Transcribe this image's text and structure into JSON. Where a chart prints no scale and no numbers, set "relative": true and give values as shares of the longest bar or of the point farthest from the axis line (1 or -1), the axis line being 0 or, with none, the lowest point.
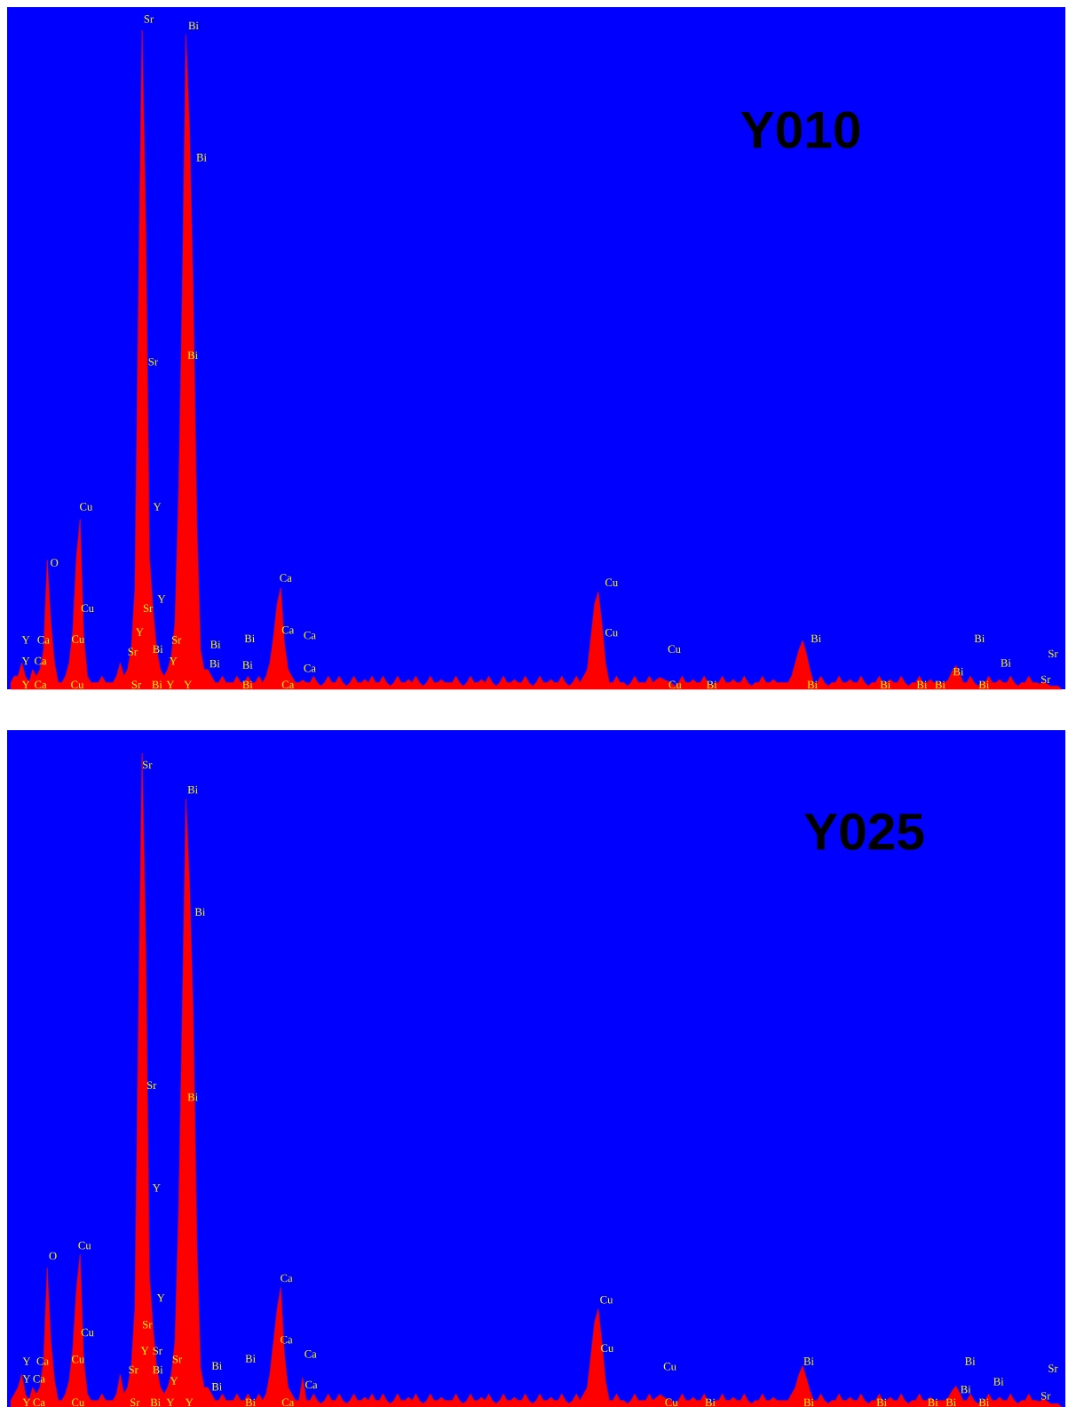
{
  "chart_data": [
    {
      "type": "area",
      "relative": true,
      "tick_labels": false,
      "title": "Y010",
      "categories": [
        null,
        null,
        null,
        null,
        null,
        null,
        null,
        null,
        null,
        null,
        null,
        null,
        null,
        null,
        null,
        null,
        null,
        null,
        null,
        null,
        null,
        null,
        null,
        null,
        null,
        null,
        null,
        null,
        null,
        null,
        null,
        null,
        null,
        null,
        null,
        null,
        null,
        null,
        null,
        null,
        null,
        null,
        null,
        null,
        null,
        null,
        null,
        null,
        null,
        null,
        null,
        null,
        null,
        null,
        null,
        null,
        null,
        null,
        null,
        null,
        null,
        null,
        null,
        null,
        null,
        null,
        null,
        null,
        null,
        null,
        null,
        null,
        null,
        null,
        null,
        null,
        null,
        null,
        null,
        null,
        null,
        null,
        null,
        null,
        null,
        null,
        null,
        null,
        null,
        null,
        null,
        null,
        null,
        null,
        null,
        null,
        null,
        null,
        null,
        null,
        null,
        null,
        null,
        null,
        null,
        null,
        null,
        null,
        null,
        null,
        null,
        null,
        null,
        null,
        null,
        null,
        null,
        null,
        null,
        null,
        null,
        null,
        null,
        null,
        null,
        null,
        null,
        null,
        null,
        null,
        null,
        null,
        null,
        null,
        null,
        null,
        null,
        null,
        null,
        null,
        null,
        null,
        null,
        null,
        null,
        null,
        null,
        null,
        null,
        null,
        null,
        null,
        null,
        null,
        null,
        null,
        null,
        null,
        null,
        null,
        null,
        null,
        null,
        null,
        null,
        null,
        null,
        null,
        null,
        null,
        null,
        null,
        null,
        null,
        null,
        null,
        null,
        null,
        null,
        null,
        null,
        null,
        null,
        null,
        null,
        null,
        null,
        null,
        null,
        null,
        null,
        null,
        null,
        null,
        null,
        null,
        null,
        null,
        null,
        null,
        null,
        null,
        null,
        null,
        null,
        null,
        null,
        null,
        null,
        null,
        null,
        null,
        null,
        null,
        null,
        null,
        null,
        null,
        null,
        null,
        null,
        null,
        null,
        null,
        null,
        null,
        null,
        null,
        null,
        null,
        null,
        null,
        null,
        null,
        null,
        null,
        null,
        null,
        null,
        null,
        null,
        null,
        null,
        null,
        null,
        null,
        null,
        null,
        null,
        null,
        null,
        null,
        null,
        null,
        null,
        null,
        null,
        null,
        null,
        null,
        null,
        null,
        null,
        null,
        null,
        null,
        null,
        null,
        null,
        null,
        null,
        null,
        null,
        null,
        null,
        null,
        null,
        null,
        null,
        null,
        null,
        null,
        null,
        null,
        null,
        null,
        null,
        null,
        null
      ],
      "series": [
        {
          "color": "#ff0000",
          "values": [
            0.01,
            0.02,
            0.02,
            0.04,
            0.02,
            0.01,
            0.03,
            0.02,
            0.03,
            0.06,
            0.196,
            0.1,
            0.04,
            0.01,
            0.01,
            0.02,
            0.04,
            0.09,
            0.2,
            0.258,
            0.08,
            0.02,
            0.01,
            0.01,
            0.01,
            0.02,
            0.01,
            0.01,
            0.01,
            0.02,
            0.04,
            0.02,
            0.03,
            0.06,
            0.15,
            0.6,
            1.0,
            0.7,
            0.2,
            0.12,
            0.06,
            0.03,
            0.02,
            0.03,
            0.05,
            0.1,
            0.3,
            0.6,
            0.993,
            0.85,
            0.6,
            0.25,
            0.06,
            0.03,
            0.03,
            0.02,
            0.01,
            0.01,
            0.02,
            0.01,
            0.01,
            0.01,
            0.02,
            0.01,
            0.01,
            0.02,
            0.01,
            0.01,
            0.02,
            0.01,
            0.02,
            0.04,
            0.08,
            0.13,
            0.154,
            0.07,
            0.03,
            0.02,
            0.01,
            0.01,
            0.014,
            0.01,
            0.01,
            0.02,
            0.01,
            0.005,
            0.01,
            0.02,
            0.01,
            0.01,
            0.02,
            0.01,
            0.005,
            0.01,
            0.02,
            0.01,
            0.01,
            0.015,
            0.01,
            0.02,
            0.01,
            0.01,
            0.02,
            0.01,
            0.005,
            0.01,
            0.02,
            0.01,
            0.01,
            0.015,
            0.01,
            0.02,
            0.01,
            0.005,
            0.01,
            0.02,
            0.01,
            0.01,
            0.015,
            0.01,
            0.01,
            0.01,
            0.02,
            0.01,
            0.005,
            0.01,
            0.02,
            0.01,
            0.01,
            0.015,
            0.01,
            0.02,
            0.01,
            0.005,
            0.01,
            0.02,
            0.01,
            0.01,
            0.015,
            0.01,
            0.01,
            0.02,
            0.01,
            0.005,
            0.01,
            0.02,
            0.01,
            0.01,
            0.015,
            0.01,
            0.01,
            0.02,
            0.01,
            0.005,
            0.01,
            0.02,
            0.01,
            0.02,
            0.03,
            0.08,
            0.13,
            0.148,
            0.1,
            0.04,
            0.01,
            0.01,
            0.02,
            0.01,
            0.01,
            0.005,
            0.01,
            0.02,
            0.01,
            0.01,
            0.01,
            0.02,
            0.01,
            0.015,
            0.018,
            0.015,
            0.012,
            0.01,
            0.005,
            0.01,
            0.02,
            0.01,
            0.01,
            0.015,
            0.01,
            0.01,
            0.02,
            0.01,
            0.005,
            0.01,
            0.01,
            0.02,
            0.01,
            0.01,
            0.015,
            0.01,
            0.01,
            0.02,
            0.01,
            0.005,
            0.01,
            0.01,
            0.02,
            0.01,
            0.01,
            0.015,
            0.01,
            0.01,
            0.01,
            0.01,
            0.02,
            0.04,
            0.06,
            0.074,
            0.055,
            0.03,
            0.01,
            0.01,
            0.02,
            0.01,
            0.005,
            0.01,
            0.01,
            0.02,
            0.01,
            0.01,
            0.015,
            0.01,
            0.01,
            0.02,
            0.01,
            0.005,
            0.01,
            0.01,
            0.02,
            0.01,
            0.01,
            0.015,
            0.01,
            0.01,
            0.02,
            0.01,
            0.005,
            0.01,
            0.01,
            0.02,
            0.01,
            0.01,
            0.015,
            0.01,
            0.01,
            0.01,
            0.01,
            0.015,
            0.028,
            0.036,
            0.025,
            0.01,
            0.01,
            0.02,
            0.01,
            0.005,
            0.01,
            0.01,
            0.02,
            0.01,
            0.01,
            0.015,
            0.01,
            0.01,
            0.02,
            0.01,
            0.005,
            0.01,
            0.01,
            0.02,
            0.01,
            0.01,
            0.008,
            0.011,
            0.008,
            0.005,
            0.005,
            0.005,
            0
          ]
        }
      ],
      "annotations": [
        "Sr",
        "Bi",
        "Bi",
        "Sr",
        "Bi",
        "Cu",
        "Y",
        "O",
        "Y",
        "Cu",
        "Sr",
        "Ca",
        "Y",
        "Ca",
        "Ca",
        "Cu",
        "Cu",
        "Cu",
        "Bi",
        "Bi",
        "Bi",
        "Sr",
        "Y",
        "Ca",
        "Cu",
        "Sr",
        "Bi",
        "Bi",
        "Sr",
        "Bi",
        "Y",
        "Ca",
        "Y",
        "Bi",
        "Ca",
        "Bi",
        "Y",
        "Ca",
        "Cu",
        "Sr",
        "Bi",
        "Y",
        "Y",
        "Bi",
        "Ca",
        "Cu",
        "Bi",
        "Bi",
        "Bi",
        "Bi",
        "Bi",
        "Bi",
        "Bi",
        "Sr"
      ]
    },
    {
      "type": "area",
      "relative": true,
      "tick_labels": false,
      "title": "Y025",
      "categories": [
        null,
        null,
        null,
        null,
        null,
        null,
        null,
        null,
        null,
        null,
        null,
        null,
        null,
        null,
        null,
        null,
        null,
        null,
        null,
        null,
        null,
        null,
        null,
        null,
        null,
        null,
        null,
        null,
        null,
        null,
        null,
        null,
        null,
        null,
        null,
        null,
        null,
        null,
        null,
        null,
        null,
        null,
        null,
        null,
        null,
        null,
        null,
        null,
        null,
        null,
        null,
        null,
        null,
        null,
        null,
        null,
        null,
        null,
        null,
        null,
        null,
        null,
        null,
        null,
        null,
        null,
        null,
        null,
        null,
        null,
        null,
        null,
        null,
        null,
        null,
        null,
        null,
        null,
        null,
        null,
        null,
        null,
        null,
        null,
        null,
        null,
        null,
        null,
        null,
        null,
        null,
        null,
        null,
        null,
        null,
        null,
        null,
        null,
        null,
        null,
        null,
        null,
        null,
        null,
        null,
        null,
        null,
        null,
        null,
        null,
        null,
        null,
        null,
        null,
        null,
        null,
        null,
        null,
        null,
        null,
        null,
        null,
        null,
        null,
        null,
        null,
        null,
        null,
        null,
        null,
        null,
        null,
        null,
        null,
        null,
        null,
        null,
        null,
        null,
        null,
        null,
        null,
        null,
        null,
        null,
        null,
        null,
        null,
        null,
        null,
        null,
        null,
        null,
        null,
        null,
        null,
        null,
        null,
        null,
        null,
        null,
        null,
        null,
        null,
        null,
        null,
        null,
        null,
        null,
        null,
        null,
        null,
        null,
        null,
        null,
        null,
        null,
        null,
        null,
        null,
        null,
        null,
        null,
        null,
        null,
        null,
        null,
        null,
        null,
        null,
        null,
        null,
        null,
        null,
        null,
        null,
        null,
        null,
        null,
        null,
        null,
        null,
        null,
        null,
        null,
        null,
        null,
        null,
        null,
        null,
        null,
        null,
        null,
        null,
        null,
        null,
        null,
        null,
        null,
        null,
        null,
        null,
        null,
        null,
        null,
        null,
        null,
        null,
        null,
        null,
        null,
        null,
        null,
        null,
        null,
        null,
        null,
        null,
        null,
        null,
        null,
        null,
        null,
        null,
        null,
        null,
        null,
        null,
        null,
        null,
        null,
        null,
        null,
        null,
        null,
        null,
        null,
        null,
        null,
        null,
        null,
        null,
        null,
        null,
        null,
        null,
        null,
        null,
        null,
        null,
        null,
        null,
        null,
        null,
        null,
        null,
        null,
        null,
        null,
        null,
        null,
        null,
        null,
        null,
        null,
        null,
        null,
        null,
        null
      ],
      "series": [
        {
          "color": "#ff0000",
          "values": [
            0.01,
            0.02,
            0.03,
            0.05,
            0.02,
            0.01,
            0.03,
            0.02,
            0.03,
            0.07,
            0.213,
            0.1,
            0.04,
            0.01,
            0.01,
            0.02,
            0.04,
            0.09,
            0.18,
            0.233,
            0.07,
            0.02,
            0.01,
            0.01,
            0.01,
            0.02,
            0.01,
            0.01,
            0.01,
            0.02,
            0.05,
            0.02,
            0.03,
            0.06,
            0.15,
            0.6,
            1.0,
            0.7,
            0.2,
            0.12,
            0.06,
            0.03,
            0.02,
            0.03,
            0.05,
            0.1,
            0.3,
            0.6,
            0.93,
            0.8,
            0.6,
            0.25,
            0.06,
            0.03,
            0.03,
            0.02,
            0.01,
            0.01,
            0.02,
            0.01,
            0.01,
            0.01,
            0.02,
            0.01,
            0.01,
            0.02,
            0.01,
            0.01,
            0.02,
            0.01,
            0.02,
            0.05,
            0.1,
            0.15,
            0.183,
            0.08,
            0.03,
            0.02,
            0.01,
            0.01,
            0.045,
            0.01,
            0.01,
            0.02,
            0.01,
            0.005,
            0.01,
            0.02,
            0.01,
            0.01,
            0.02,
            0.01,
            0.005,
            0.01,
            0.02,
            0.01,
            0.01,
            0.015,
            0.01,
            0.02,
            0.01,
            0.01,
            0.02,
            0.01,
            0.005,
            0.01,
            0.02,
            0.01,
            0.01,
            0.015,
            0.01,
            0.02,
            0.01,
            0.005,
            0.01,
            0.02,
            0.01,
            0.01,
            0.015,
            0.01,
            0.01,
            0.01,
            0.02,
            0.01,
            0.005,
            0.01,
            0.02,
            0.01,
            0.01,
            0.015,
            0.01,
            0.02,
            0.01,
            0.005,
            0.01,
            0.02,
            0.01,
            0.01,
            0.015,
            0.01,
            0.01,
            0.02,
            0.01,
            0.005,
            0.01,
            0.02,
            0.01,
            0.01,
            0.015,
            0.01,
            0.01,
            0.02,
            0.01,
            0.005,
            0.01,
            0.02,
            0.01,
            0.02,
            0.03,
            0.08,
            0.13,
            0.15,
            0.1,
            0.04,
            0.01,
            0.01,
            0.02,
            0.01,
            0.01,
            0.005,
            0.01,
            0.02,
            0.01,
            0.01,
            0.01,
            0.02,
            0.01,
            0.015,
            0.019,
            0.015,
            0.012,
            0.01,
            0.005,
            0.01,
            0.02,
            0.01,
            0.01,
            0.015,
            0.01,
            0.01,
            0.02,
            0.01,
            0.005,
            0.01,
            0.01,
            0.02,
            0.01,
            0.01,
            0.015,
            0.01,
            0.01,
            0.02,
            0.01,
            0.005,
            0.01,
            0.01,
            0.02,
            0.01,
            0.01,
            0.015,
            0.01,
            0.01,
            0.01,
            0.01,
            0.02,
            0.03,
            0.05,
            0.063,
            0.045,
            0.025,
            0.01,
            0.01,
            0.02,
            0.01,
            0.005,
            0.01,
            0.01,
            0.02,
            0.01,
            0.01,
            0.015,
            0.01,
            0.01,
            0.02,
            0.01,
            0.005,
            0.01,
            0.01,
            0.02,
            0.01,
            0.01,
            0.015,
            0.01,
            0.01,
            0.02,
            0.01,
            0.005,
            0.01,
            0.01,
            0.02,
            0.01,
            0.01,
            0.015,
            0.01,
            0.01,
            0.01,
            0.01,
            0.015,
            0.025,
            0.032,
            0.022,
            0.01,
            0.01,
            0.02,
            0.01,
            0.005,
            0.01,
            0.01,
            0.02,
            0.01,
            0.01,
            0.015,
            0.01,
            0.01,
            0.02,
            0.01,
            0.005,
            0.01,
            0.01,
            0.02,
            0.01,
            0.01,
            0.008,
            0.013,
            0.009,
            0.005,
            0.005,
            0.005,
            0
          ]
        }
      ],
      "annotations": [
        "Sr",
        "Bi",
        "Bi",
        "Sr",
        "Bi",
        "Y",
        "Y",
        "O",
        "Cu",
        "Cu",
        "Sr",
        "Ca",
        "Ca",
        "Ca",
        "Ca",
        "Cu",
        "Cu",
        "Cu",
        "Bi",
        "Bi",
        "Bi",
        "Sr",
        "Y",
        "Ca",
        "Cu",
        "Sr",
        "Sr",
        "Bi",
        "Sr",
        "Y",
        "Bi",
        "Bi",
        "Y",
        "Ca",
        "Y",
        "Bi",
        "Bi",
        "Y",
        "Ca",
        "Cu",
        "Sr",
        "Bi",
        "Y",
        "Y",
        "Ca",
        "Cu",
        "Bi",
        "Bi",
        "Bi",
        "Bi",
        "Bi",
        "Bi",
        "Bi",
        "Sr"
      ]
    }
  ]
}
